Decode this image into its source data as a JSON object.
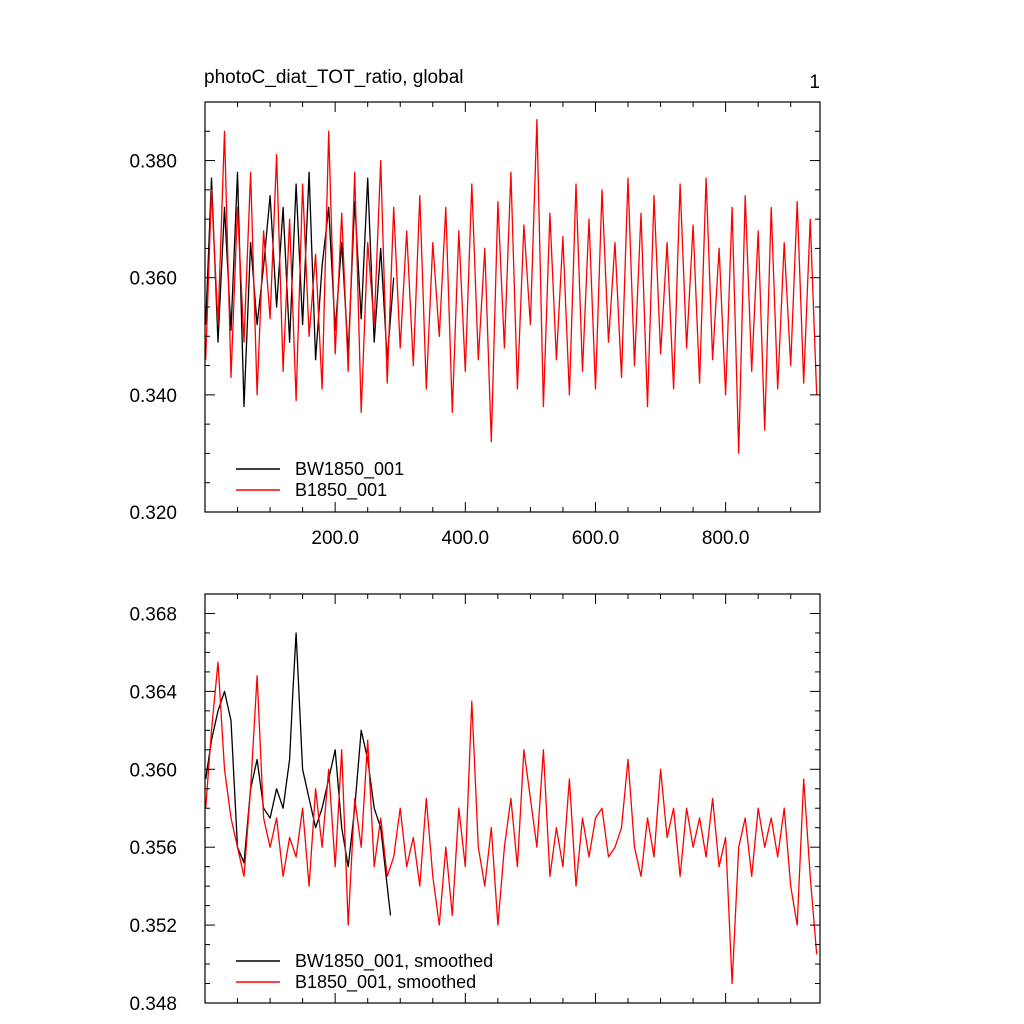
{
  "figure": {
    "title": "photoC_diat_TOT_ratio, global",
    "panel_number": "1"
  },
  "chart_data": [
    {
      "type": "line",
      "title": "photoC_diat_TOT_ratio, global",
      "xlabel": "",
      "ylabel": "",
      "xlim": [
        0,
        945
      ],
      "ylim": [
        0.32,
        0.39
      ],
      "x_ticks": [
        200,
        400,
        600,
        800
      ],
      "x_tick_labels": [
        "200.0",
        "400.0",
        "600.0",
        "800.0"
      ],
      "y_ticks": [
        0.32,
        0.34,
        0.36,
        0.38
      ],
      "y_tick_labels": [
        "0.320",
        "0.340",
        "0.360",
        "0.380"
      ],
      "legend_position": "bottom-left",
      "grid": false,
      "series": [
        {
          "name": "BW1850_001",
          "color": "#000000",
          "x": [
            1,
            10,
            20,
            30,
            40,
            50,
            60,
            70,
            80,
            90,
            100,
            110,
            120,
            130,
            140,
            150,
            160,
            170,
            180,
            190,
            200,
            210,
            220,
            230,
            240,
            250,
            260,
            270,
            280,
            290
          ],
          "y": [
            0.352,
            0.377,
            0.349,
            0.372,
            0.351,
            0.378,
            0.338,
            0.366,
            0.352,
            0.362,
            0.374,
            0.355,
            0.372,
            0.349,
            0.376,
            0.352,
            0.378,
            0.346,
            0.362,
            0.372,
            0.351,
            0.366,
            0.347,
            0.373,
            0.353,
            0.377,
            0.349,
            0.365,
            0.346,
            0.36
          ]
        },
        {
          "name": "B1850_001",
          "color": "#ff0000",
          "x": [
            1,
            10,
            20,
            30,
            40,
            50,
            60,
            70,
            80,
            90,
            100,
            110,
            120,
            130,
            140,
            150,
            160,
            170,
            180,
            190,
            200,
            210,
            220,
            230,
            240,
            250,
            260,
            270,
            280,
            290,
            300,
            310,
            320,
            330,
            340,
            350,
            360,
            370,
            380,
            390,
            400,
            410,
            420,
            430,
            440,
            450,
            460,
            470,
            480,
            490,
            500,
            510,
            520,
            530,
            540,
            550,
            560,
            570,
            580,
            590,
            600,
            610,
            620,
            630,
            640,
            650,
            660,
            670,
            680,
            690,
            700,
            710,
            720,
            730,
            740,
            750,
            760,
            770,
            780,
            790,
            800,
            810,
            820,
            830,
            840,
            850,
            860,
            870,
            880,
            890,
            900,
            910,
            920,
            930,
            940
          ],
          "y": [
            0.346,
            0.375,
            0.352,
            0.385,
            0.343,
            0.372,
            0.349,
            0.378,
            0.34,
            0.368,
            0.353,
            0.381,
            0.344,
            0.37,
            0.339,
            0.376,
            0.35,
            0.364,
            0.341,
            0.385,
            0.347,
            0.371,
            0.344,
            0.378,
            0.337,
            0.366,
            0.352,
            0.38,
            0.342,
            0.372,
            0.348,
            0.368,
            0.345,
            0.374,
            0.341,
            0.366,
            0.35,
            0.372,
            0.337,
            0.368,
            0.344,
            0.376,
            0.346,
            0.365,
            0.332,
            0.373,
            0.348,
            0.378,
            0.341,
            0.369,
            0.352,
            0.387,
            0.338,
            0.371,
            0.346,
            0.367,
            0.34,
            0.376,
            0.344,
            0.37,
            0.341,
            0.375,
            0.349,
            0.366,
            0.343,
            0.377,
            0.345,
            0.371,
            0.338,
            0.374,
            0.347,
            0.366,
            0.341,
            0.376,
            0.348,
            0.369,
            0.342,
            0.377,
            0.346,
            0.365,
            0.34,
            0.372,
            0.33,
            0.374,
            0.344,
            0.368,
            0.334,
            0.372,
            0.341,
            0.366,
            0.345,
            0.373,
            0.342,
            0.37,
            0.34
          ]
        }
      ]
    },
    {
      "type": "line",
      "title": "",
      "xlabel": "",
      "ylabel": "",
      "xlim": [
        0,
        945
      ],
      "ylim": [
        0.348,
        0.369
      ],
      "x_ticks": [
        200,
        400,
        600,
        800
      ],
      "x_tick_labels": [],
      "y_ticks": [
        0.348,
        0.352,
        0.356,
        0.36,
        0.364,
        0.368
      ],
      "y_tick_labels": [
        "0.348",
        "0.352",
        "0.356",
        "0.360",
        "0.364",
        "0.368"
      ],
      "legend_position": "bottom-left",
      "grid": false,
      "series": [
        {
          "name": "BW1850_001, smoothed",
          "color": "#000000",
          "x": [
            1,
            10,
            20,
            30,
            40,
            50,
            60,
            70,
            80,
            90,
            100,
            110,
            120,
            130,
            135,
            140,
            150,
            160,
            170,
            180,
            190,
            200,
            210,
            220,
            230,
            240,
            250,
            260,
            270,
            280,
            285
          ],
          "y": [
            0.3595,
            0.3615,
            0.363,
            0.364,
            0.3625,
            0.356,
            0.3552,
            0.359,
            0.3605,
            0.358,
            0.3575,
            0.359,
            0.358,
            0.3605,
            0.364,
            0.367,
            0.36,
            0.3585,
            0.357,
            0.358,
            0.3595,
            0.361,
            0.357,
            0.355,
            0.358,
            0.362,
            0.3605,
            0.358,
            0.357,
            0.354,
            0.3525
          ]
        },
        {
          "name": "B1850_001, smoothed",
          "color": "#ff0000",
          "x": [
            1,
            10,
            20,
            30,
            40,
            50,
            60,
            70,
            80,
            90,
            100,
            110,
            120,
            130,
            140,
            150,
            160,
            170,
            180,
            190,
            200,
            210,
            220,
            230,
            240,
            250,
            260,
            270,
            280,
            290,
            300,
            310,
            320,
            330,
            340,
            350,
            360,
            370,
            380,
            390,
            400,
            410,
            420,
            430,
            440,
            450,
            460,
            470,
            480,
            490,
            500,
            510,
            520,
            530,
            540,
            550,
            560,
            570,
            580,
            590,
            600,
            610,
            620,
            630,
            640,
            650,
            660,
            670,
            680,
            690,
            700,
            710,
            720,
            730,
            740,
            750,
            760,
            770,
            780,
            790,
            800,
            810,
            820,
            830,
            840,
            850,
            860,
            870,
            880,
            890,
            900,
            910,
            920,
            930,
            940
          ],
          "y": [
            0.358,
            0.362,
            0.3655,
            0.36,
            0.3575,
            0.356,
            0.3545,
            0.359,
            0.3648,
            0.3575,
            0.356,
            0.3575,
            0.3545,
            0.3565,
            0.3555,
            0.358,
            0.354,
            0.359,
            0.356,
            0.36,
            0.355,
            0.361,
            0.352,
            0.3585,
            0.356,
            0.3615,
            0.355,
            0.3575,
            0.3545,
            0.3555,
            0.358,
            0.355,
            0.3565,
            0.354,
            0.3585,
            0.3545,
            0.352,
            0.356,
            0.3525,
            0.358,
            0.355,
            0.3635,
            0.356,
            0.354,
            0.357,
            0.352,
            0.356,
            0.3585,
            0.355,
            0.361,
            0.3585,
            0.356,
            0.361,
            0.3545,
            0.357,
            0.355,
            0.3595,
            0.354,
            0.3575,
            0.3555,
            0.3575,
            0.358,
            0.3555,
            0.356,
            0.357,
            0.3605,
            0.356,
            0.3545,
            0.3575,
            0.3555,
            0.36,
            0.3565,
            0.358,
            0.3545,
            0.358,
            0.356,
            0.3575,
            0.3555,
            0.3585,
            0.355,
            0.3565,
            0.349,
            0.356,
            0.3575,
            0.3545,
            0.358,
            0.356,
            0.3575,
            0.3555,
            0.358,
            0.354,
            0.352,
            0.3595,
            0.3545,
            0.3505
          ]
        }
      ]
    }
  ]
}
